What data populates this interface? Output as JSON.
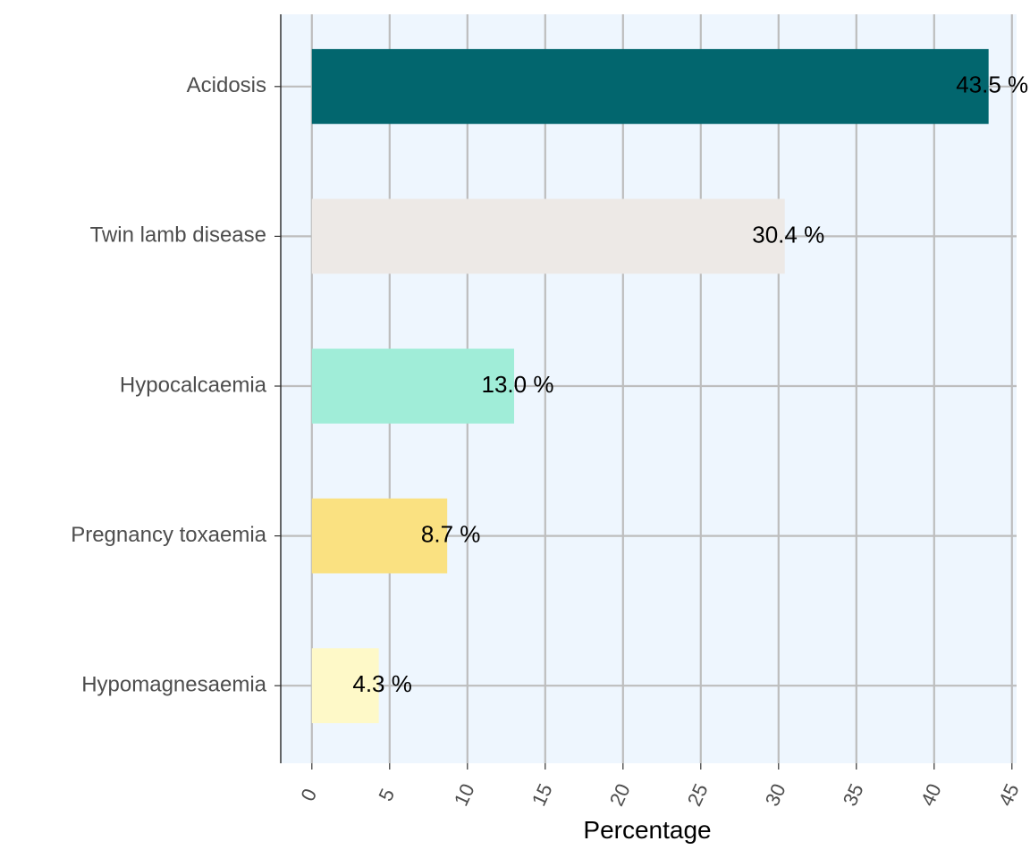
{
  "chart_data": {
    "type": "bar",
    "orientation": "horizontal",
    "categories": [
      "Acidosis",
      "Twin lamb disease",
      "Hypocalcaemia",
      "Pregnancy toxaemia",
      "Hypomagnesaemia"
    ],
    "values": [
      43.5,
      30.4,
      13.0,
      8.7,
      4.3
    ],
    "data_labels": [
      "43.5 %",
      "30.4 %",
      "13.0 %",
      "8.7 %",
      "4.3 %"
    ],
    "colors": [
      "#02666E",
      "#EDE9E6",
      "#A0EDD8",
      "#FAE181",
      "#FEF9C8"
    ],
    "xlabel": "Percentage",
    "ylabel": "",
    "xlim": [
      -2,
      45.3
    ],
    "x_ticks": [
      0,
      5,
      10,
      15,
      20,
      25,
      30,
      35,
      40,
      45
    ],
    "grid": true,
    "legend": "none",
    "background_color": "#EEF6FE"
  }
}
